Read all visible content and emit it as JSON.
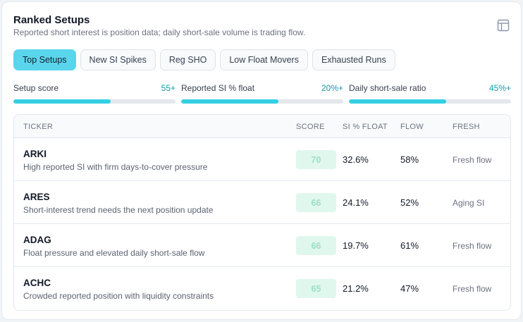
{
  "header": {
    "title": "Ranked Setups",
    "subtitle": "Reported short interest is position data; daily short-sale volume is trading flow."
  },
  "tabs": [
    {
      "label": "Top Setups",
      "active": true
    },
    {
      "label": "New SI Spikes",
      "active": false
    },
    {
      "label": "Reg SHO",
      "active": false
    },
    {
      "label": "Low Float Movers",
      "active": false
    },
    {
      "label": "Exhausted Runs",
      "active": false
    }
  ],
  "filters": [
    {
      "label": "Setup score",
      "value": "55+",
      "level_pct": 60
    },
    {
      "label": "Reported SI % float",
      "value": "20%+",
      "level_pct": 60
    },
    {
      "label": "Daily short-sale ratio",
      "value": "45%+",
      "level_pct": 60
    }
  ],
  "table": {
    "columns": {
      "ticker": "TICKER",
      "score": "SCORE",
      "si": "SI % FLOAT",
      "flow": "FLOW",
      "fresh": "FRESH"
    },
    "rows": [
      {
        "ticker": "ARKI",
        "desc": "High reported SI with firm days-to-cover pressure",
        "score": "70",
        "si": "32.6%",
        "flow": "58%",
        "fresh": "Fresh flow"
      },
      {
        "ticker": "ARES",
        "desc": "Short-interest trend needs the next position update",
        "score": "66",
        "si": "24.1%",
        "flow": "52%",
        "fresh": "Aging SI"
      },
      {
        "ticker": "ADAG",
        "desc": "Float pressure and elevated daily short-sale flow",
        "score": "66",
        "si": "19.7%",
        "flow": "61%",
        "fresh": "Fresh flow"
      },
      {
        "ticker": "ACHC",
        "desc": "Crowded reported position with liquidity constraints",
        "score": "65",
        "si": "21.2%",
        "flow": "47%",
        "fresh": "Fresh flow"
      }
    ]
  },
  "icons": {
    "layout": "layout-panel-icon"
  },
  "colors": {
    "accent": "#5ad6ec",
    "bar_fill": "#34cfe3",
    "score_bg": "#e0f7ee",
    "score_text": "#9be0c4"
  }
}
